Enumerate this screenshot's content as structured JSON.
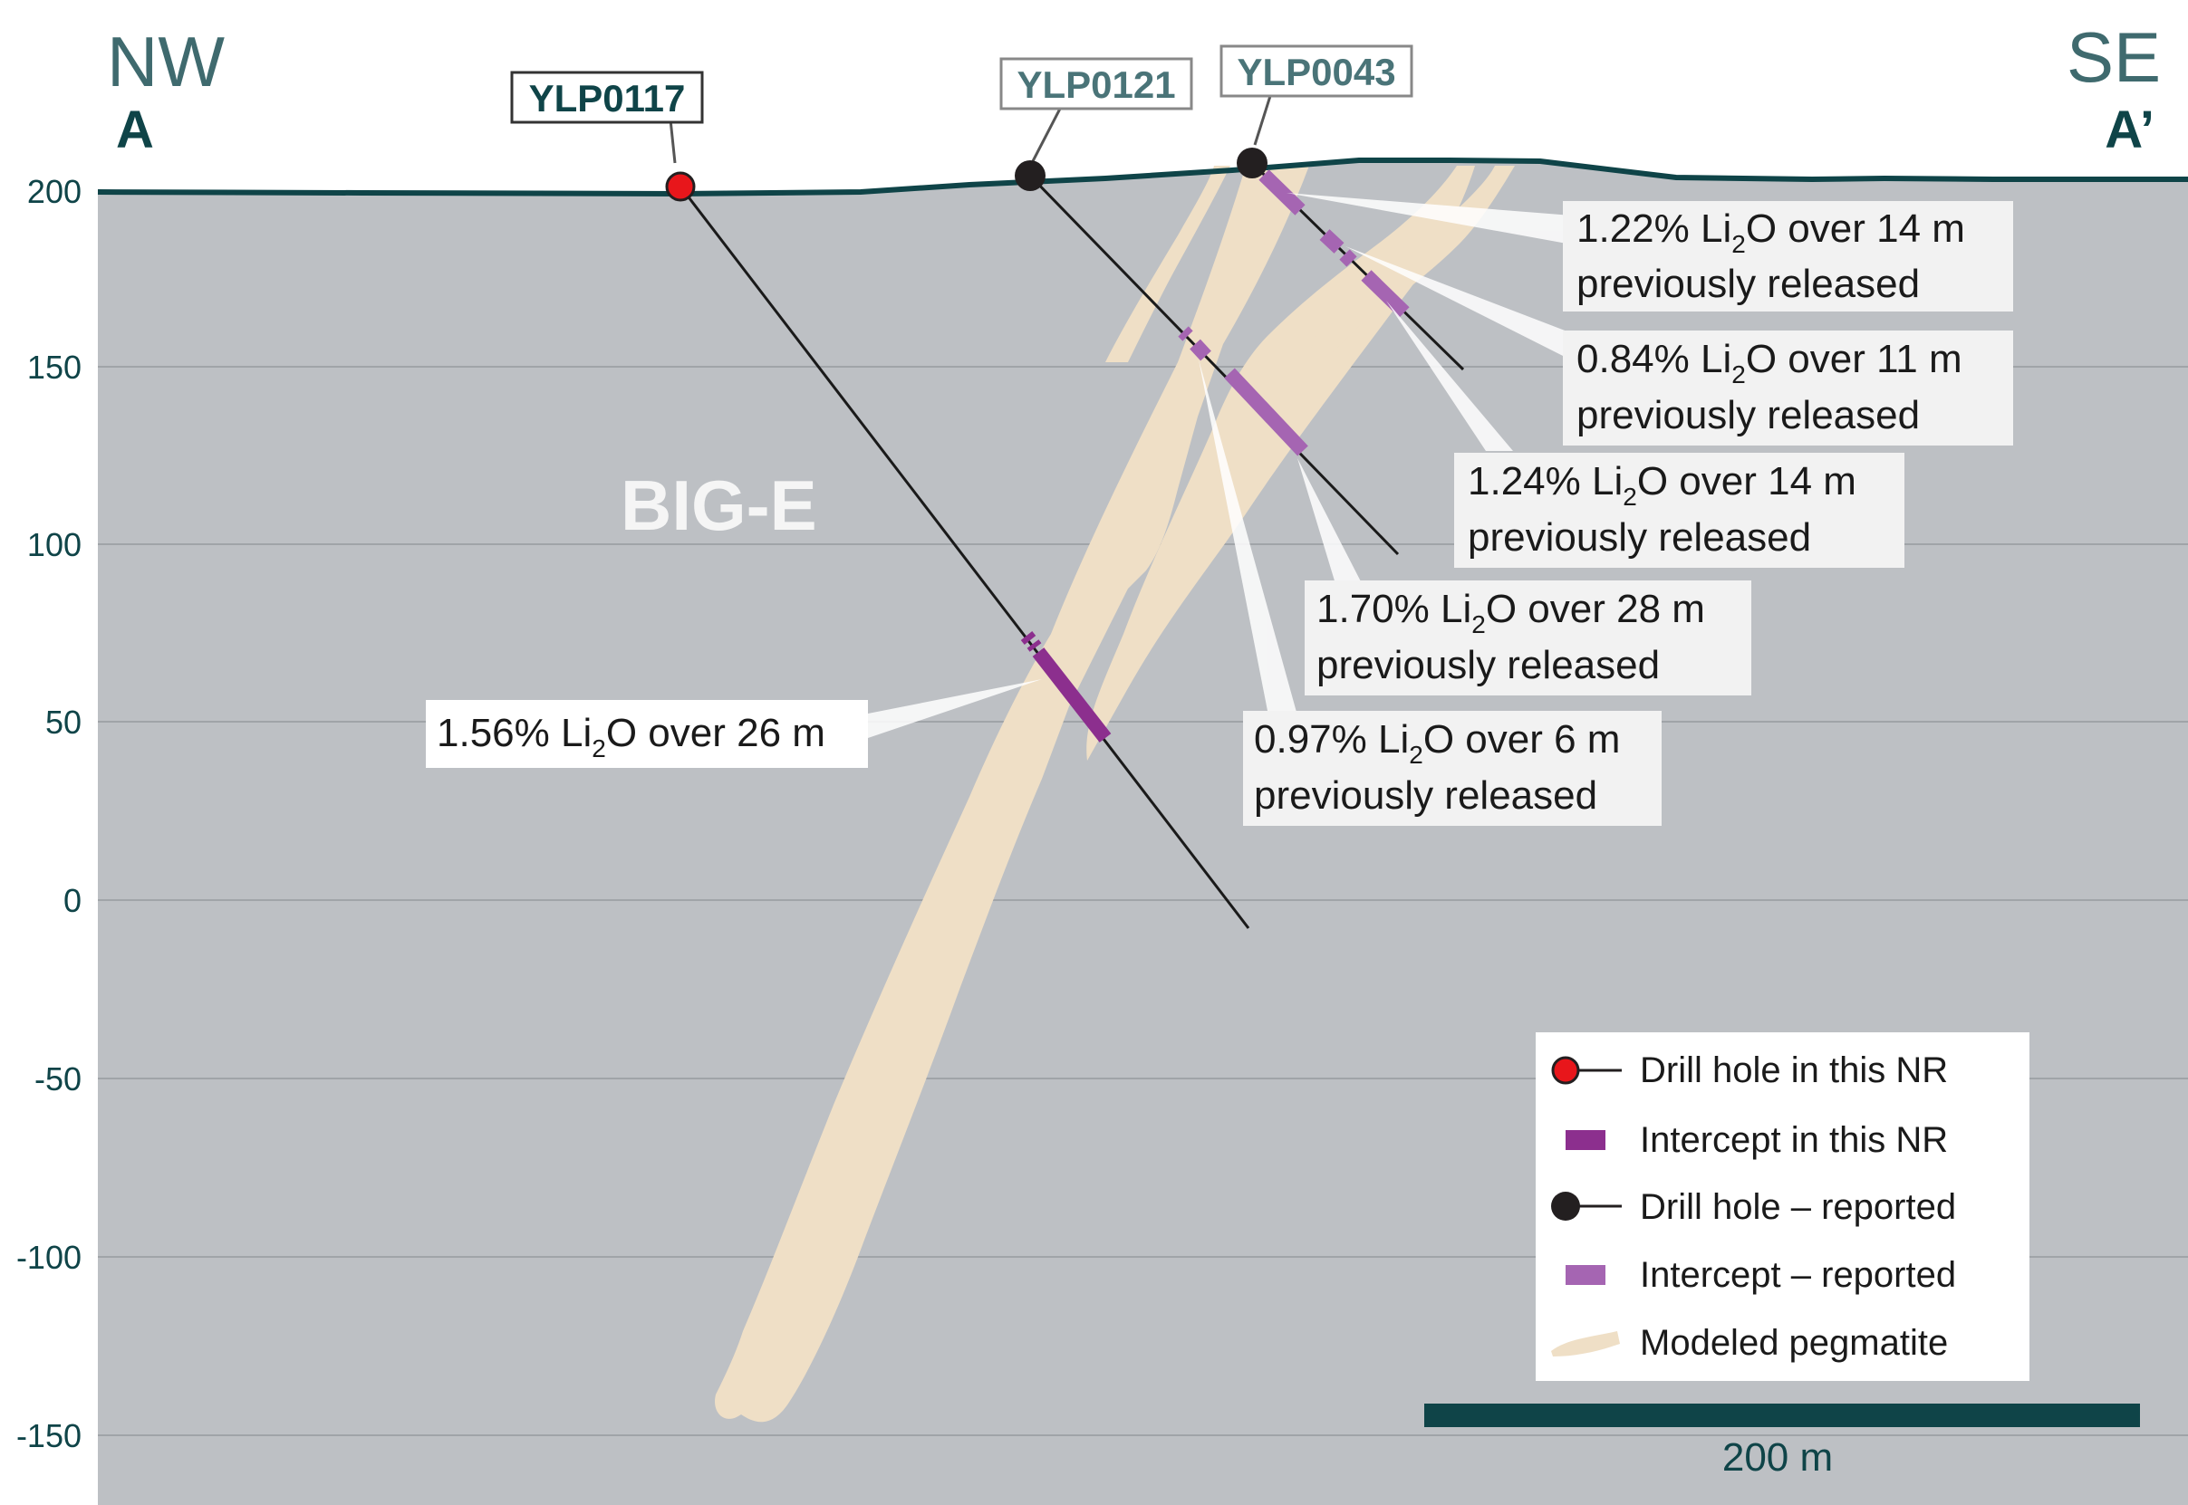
{
  "section": {
    "left_direction": "NW",
    "left_marker": "A",
    "right_direction": "SE",
    "right_marker": "A’",
    "body_label": "BIG-E"
  },
  "elevation_ticks": [
    "200",
    "150",
    "100",
    "50",
    "0",
    "-50",
    "-100",
    "-150"
  ],
  "drill_holes": [
    {
      "id": "YLP0117",
      "status": "this NR"
    },
    {
      "id": "YLP0121",
      "status": "reported"
    },
    {
      "id": "YLP0043",
      "status": "reported"
    }
  ],
  "intercepts": [
    {
      "grade": "1.22%",
      "element": "Li",
      "sub": "2",
      "oxide": "O",
      "length": " over 14 m",
      "note": "previously released"
    },
    {
      "grade": "0.84%",
      "element": "Li",
      "sub": "2",
      "oxide": "O",
      "length": " over 11 m",
      "note": "previously released"
    },
    {
      "grade": "1.24%",
      "element": "Li",
      "sub": "2",
      "oxide": "O",
      "length": " over 14 m",
      "note": "previously released"
    },
    {
      "grade": "1.70%",
      "element": "Li",
      "sub": "2",
      "oxide": "O",
      "length": " over 28 m",
      "note": "previously released"
    },
    {
      "grade": "0.97%",
      "element": "Li",
      "sub": "2",
      "oxide": "O",
      "length": " over 6 m",
      "note": "previously released"
    },
    {
      "grade": "1.56%",
      "element": "Li",
      "sub": "2",
      "oxide": "O",
      "length": " over 26 m",
      "note": ""
    }
  ],
  "legend": [
    {
      "label": "Drill hole in this NR",
      "symbol": "red-hole"
    },
    {
      "label": "Intercept in this NR",
      "symbol": "dark-purple-bar"
    },
    {
      "label": "Drill hole – reported",
      "symbol": "black-hole"
    },
    {
      "label": "Intercept – reported",
      "symbol": "light-purple-bar"
    },
    {
      "label": "Modeled pegmatite",
      "symbol": "pegmatite-swatch"
    }
  ],
  "scale_bar": {
    "label": "200 m"
  },
  "colors": {
    "ground": "#bdc0c4",
    "surface_line": "#0f4448",
    "pegmatite": "#efdfc6",
    "intercept_new": "#8c2f8e",
    "intercept_reported": "#a565b2",
    "hole_new": "#e8161b",
    "hole_reported": "#231f20",
    "title_text": "#3f6a6e",
    "axis_text": "#0f4448"
  }
}
